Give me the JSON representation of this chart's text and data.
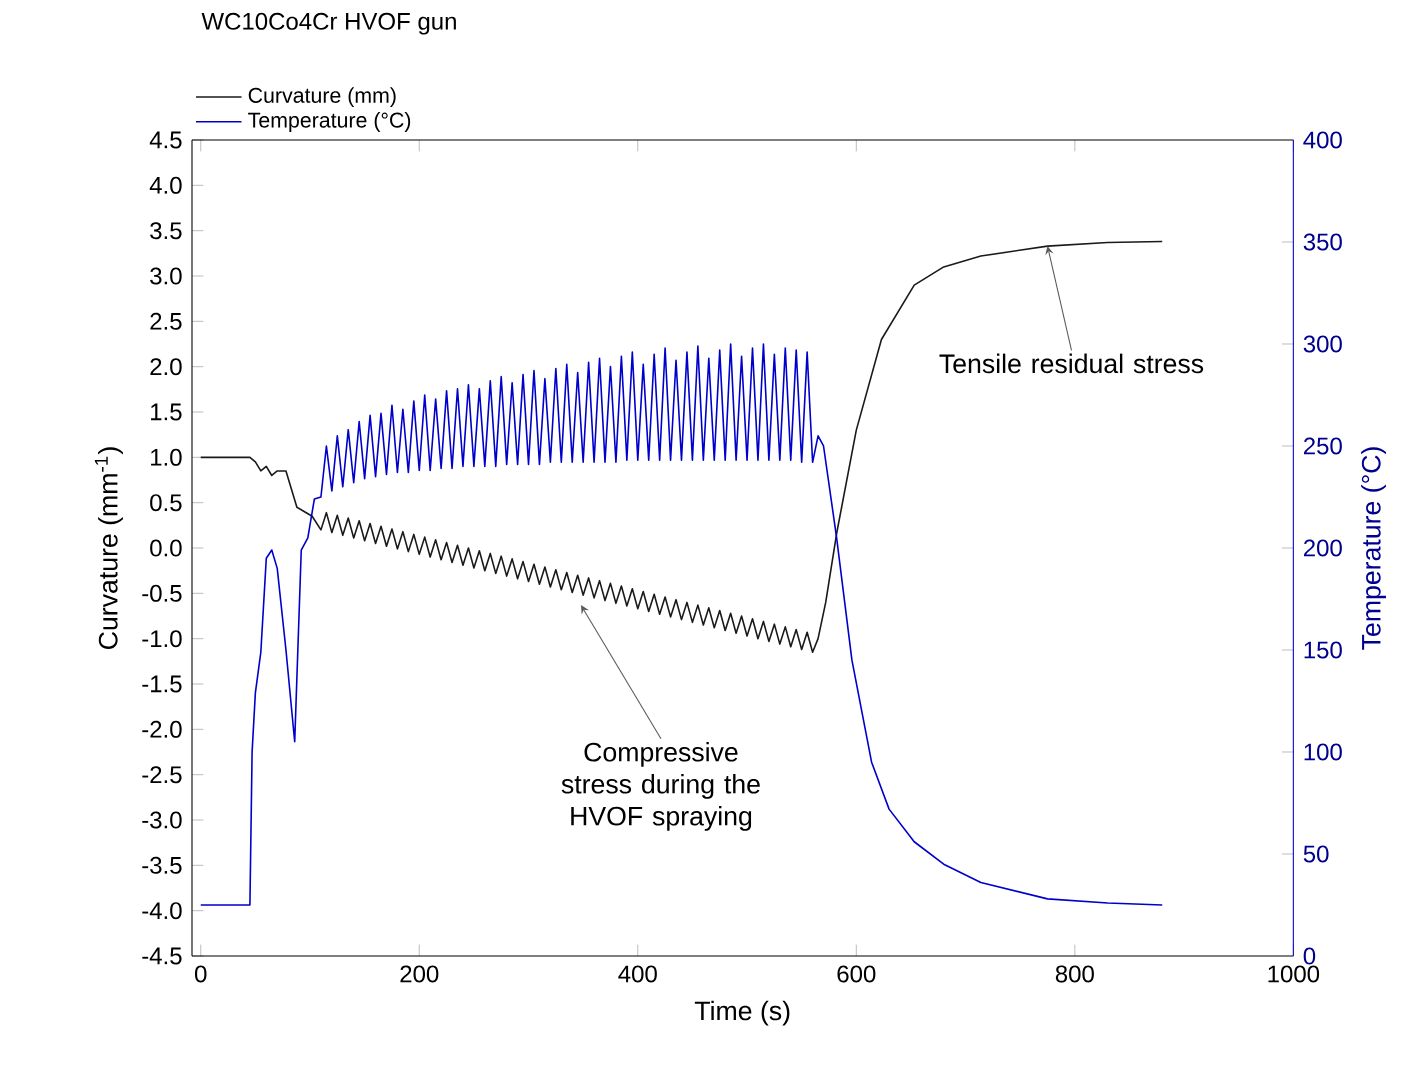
{
  "chart_data": {
    "type": "line",
    "title": "WC10Co4Cr HVOF gun",
    "xlabel": "Time (s)",
    "ylabel": "Curvature (mm$^{-1}$)",
    "y2label": "Temperature (°C)",
    "xlim": [
      -8,
      1000
    ],
    "ylim": [
      -4.5,
      4.5
    ],
    "y2lim": [
      0,
      400
    ],
    "xticks": [
      0,
      200,
      400,
      600,
      800,
      1000
    ],
    "yticks": [
      -4.5,
      {
        "value": -4,
        "label": "-4.0"
      },
      -3.5,
      {
        "value": -3,
        "label": "-3.0"
      },
      -2.5,
      {
        "value": -2,
        "label": "-2.0"
      },
      -1.5,
      {
        "value": -1,
        "label": "-1.0"
      },
      -0.5,
      {
        "value": 0,
        "label": "0.0"
      },
      0.5,
      {
        "value": 1,
        "label": "1.0"
      },
      1.5,
      {
        "value": 2,
        "label": "2.0"
      },
      2.5,
      {
        "value": 3,
        "label": "3.0"
      },
      3.5,
      {
        "value": 4,
        "label": "4.0"
      },
      4.5
    ],
    "y2ticks": [
      0,
      50,
      100,
      150,
      200,
      250,
      300,
      350,
      400
    ],
    "legend": "top left",
    "series": [
      {
        "name": "Curvature (mm)",
        "color": "#1a1a1a",
        "axis": "y",
        "x": [
          0,
          45,
          50,
          55,
          60,
          65,
          70,
          78,
          88,
          95,
          102,
          110,
          115,
          120,
          125,
          130,
          135,
          140,
          145,
          150,
          155,
          160,
          165,
          170,
          175,
          180,
          185,
          190,
          195,
          200,
          205,
          210,
          215,
          220,
          225,
          230,
          235,
          240,
          245,
          250,
          255,
          260,
          265,
          270,
          275,
          280,
          285,
          290,
          295,
          300,
          305,
          310,
          315,
          320,
          325,
          330,
          335,
          340,
          345,
          350,
          355,
          360,
          365,
          370,
          375,
          380,
          385,
          390,
          395,
          400,
          405,
          410,
          415,
          420,
          425,
          430,
          435,
          440,
          445,
          450,
          455,
          460,
          465,
          470,
          475,
          480,
          485,
          490,
          495,
          500,
          505,
          510,
          515,
          520,
          525,
          530,
          535,
          540,
          545,
          550,
          555,
          560,
          565,
          572,
          582,
          600,
          623,
          653,
          680,
          714,
          775,
          830,
          880
        ],
        "values": [
          1.0,
          1.0,
          0.95,
          0.85,
          0.9,
          0.8,
          0.85,
          0.85,
          0.45,
          0.4,
          0.35,
          0.2,
          0.39,
          0.17,
          0.36,
          0.14,
          0.33,
          0.11,
          0.3,
          0.08,
          0.27,
          0.05,
          0.24,
          0.02,
          0.21,
          -0.01,
          0.18,
          -0.04,
          0.15,
          -0.07,
          0.12,
          -0.1,
          0.09,
          -0.13,
          0.06,
          -0.16,
          0.03,
          -0.19,
          0.0,
          -0.22,
          -0.03,
          -0.25,
          -0.06,
          -0.28,
          -0.09,
          -0.31,
          -0.12,
          -0.34,
          -0.15,
          -0.37,
          -0.18,
          -0.4,
          -0.21,
          -0.43,
          -0.24,
          -0.46,
          -0.27,
          -0.49,
          -0.3,
          -0.52,
          -0.33,
          -0.55,
          -0.36,
          -0.58,
          -0.39,
          -0.61,
          -0.42,
          -0.64,
          -0.45,
          -0.67,
          -0.48,
          -0.7,
          -0.51,
          -0.73,
          -0.54,
          -0.76,
          -0.57,
          -0.79,
          -0.6,
          -0.82,
          -0.63,
          -0.85,
          -0.66,
          -0.88,
          -0.69,
          -0.91,
          -0.72,
          -0.94,
          -0.75,
          -0.97,
          -0.78,
          -1.0,
          -0.81,
          -1.03,
          -0.84,
          -1.06,
          -0.87,
          -1.09,
          -0.9,
          -1.12,
          -0.93,
          -1.15,
          -1.0,
          -0.6,
          0.16,
          1.3,
          2.3,
          2.9,
          3.1,
          3.22,
          3.33,
          3.37,
          3.38
        ]
      },
      {
        "name": "Temperature (°C)",
        "color": "#0000cc",
        "axis": "y2",
        "x": [
          0,
          45,
          47,
          50,
          55,
          60,
          65,
          70,
          78,
          86,
          92,
          98,
          104,
          110,
          115,
          120,
          125,
          130,
          135,
          140,
          145,
          150,
          155,
          160,
          165,
          170,
          175,
          180,
          185,
          190,
          195,
          200,
          205,
          210,
          215,
          220,
          225,
          230,
          235,
          240,
          245,
          250,
          255,
          260,
          265,
          270,
          275,
          280,
          285,
          290,
          295,
          300,
          305,
          310,
          315,
          320,
          325,
          330,
          335,
          340,
          345,
          350,
          355,
          360,
          365,
          370,
          375,
          380,
          385,
          390,
          395,
          400,
          405,
          410,
          415,
          420,
          425,
          430,
          435,
          440,
          445,
          450,
          455,
          460,
          465,
          470,
          475,
          480,
          485,
          490,
          495,
          500,
          505,
          510,
          515,
          520,
          525,
          530,
          535,
          540,
          545,
          550,
          555,
          560,
          565,
          570,
          582,
          596,
          614,
          630,
          653,
          680,
          714,
          775,
          830,
          880
        ],
        "values": [
          25,
          25,
          100,
          129,
          149,
          195,
          199,
          190,
          150,
          105,
          199,
          205,
          224,
          225,
          250,
          228,
          255,
          230,
          258,
          232,
          262,
          234,
          265,
          235,
          266,
          236,
          270,
          237,
          268,
          237,
          272,
          238,
          275,
          238,
          273,
          239,
          277,
          239,
          278,
          240,
          280,
          240,
          278,
          240,
          282,
          240,
          284,
          241,
          281,
          241,
          285,
          241,
          287,
          241,
          283,
          242,
          288,
          242,
          290,
          242,
          286,
          242,
          291,
          242,
          293,
          242,
          289,
          242,
          294,
          243,
          296,
          243,
          290,
          243,
          295,
          243,
          298,
          243,
          292,
          243,
          296,
          243,
          299,
          243,
          293,
          243,
          297,
          243,
          300,
          243,
          294,
          243,
          298,
          243,
          300,
          243,
          295,
          243,
          298,
          243,
          297,
          242,
          296,
          242,
          255,
          250,
          205,
          145,
          95,
          72,
          56,
          45,
          36,
          28,
          26,
          25
        ]
      }
    ],
    "annotations": [
      {
        "text": "Tensile residual stress",
        "x": 775,
        "y": 3.33
      },
      {
        "text": "Compressive stress during the HVOF spraying",
        "x": 348,
        "y": -0.63
      }
    ]
  }
}
